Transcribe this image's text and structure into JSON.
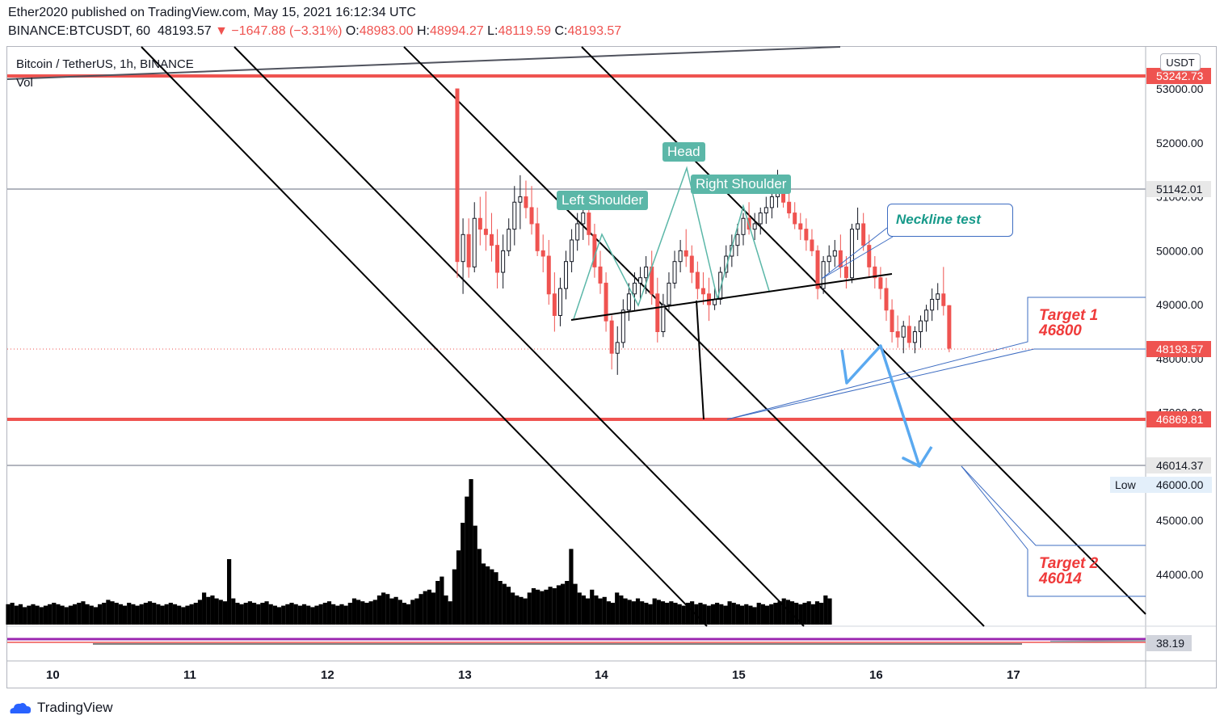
{
  "header": {
    "published": "Ether2020 published on TradingView.com, May 15, 2021 16:12:34 UTC",
    "symbol": "BINANCE:BTCUSDT, 60",
    "last": "48193.57",
    "change": "▼ −1647.88 (−3.31%)",
    "o_label": "O:",
    "o": "48983.00",
    "h_label": "H:",
    "h": "48994.27",
    "l_label": "L:",
    "l": "48119.59",
    "c_label": "C:",
    "c": "48193.57"
  },
  "legend": {
    "title": "Bitcoin / TetherUS, 1h, BINANCE",
    "vol": "Vol",
    "currency": "USDT"
  },
  "annotations": {
    "head": "Head",
    "left_shoulder": "Left Shoulder",
    "right_shoulder": "Right Shoulder",
    "neckline_test": "Neckline test",
    "target1_title": "Target 1",
    "target1_value": "46800",
    "target2_title": "Target 2",
    "target2_value": "46014"
  },
  "price_tags": {
    "level1": "53242.73",
    "level2": "51142.01",
    "last": "48193.57",
    "level3": "46869.81",
    "level4": "46014.37",
    "low_label": "Low",
    "low_value": "46000.00",
    "indicator": "38.19"
  },
  "footer": {
    "brand": "TradingView"
  },
  "colors": {
    "up": "#ffffff",
    "down": "#ef5350",
    "teal": "#5bb7a8",
    "red_line": "#ef5350",
    "blue_arrow": "#5aa9f0",
    "vol": "#000000"
  },
  "chart_data": {
    "type": "candlestick",
    "y_axis_ticks": [
      53000,
      52000,
      51000,
      50000,
      49000,
      48000,
      47000,
      45000,
      44000
    ],
    "x_axis_ticks": [
      "10",
      "11",
      "12",
      "13",
      "14",
      "15",
      "16",
      "17"
    ],
    "horizontal_levels": [
      53242.73,
      51142.01,
      46869.81,
      46014.37
    ],
    "last_price": 48193.57,
    "low": 46000.0,
    "candles_note_times": "hourly, May 13 00:00 to May 15 16:00",
    "ohlc": [
      [
        53000,
        53000,
        49500,
        49800
      ],
      [
        49800,
        50600,
        49200,
        50300
      ],
      [
        50300,
        50600,
        49500,
        49700
      ],
      [
        49700,
        50900,
        49600,
        50600
      ],
      [
        50600,
        51000,
        50100,
        50400
      ],
      [
        50400,
        51100,
        50000,
        50300
      ],
      [
        50300,
        50700,
        49800,
        50100
      ],
      [
        50100,
        50400,
        49300,
        49600
      ],
      [
        49600,
        50300,
        49300,
        50000
      ],
      [
        50000,
        50600,
        49900,
        50400
      ],
      [
        50400,
        51200,
        50100,
        50900
      ],
      [
        50900,
        51400,
        50400,
        51000
      ],
      [
        51000,
        51300,
        50600,
        50800
      ],
      [
        50800,
        51200,
        50300,
        50500
      ],
      [
        50500,
        50800,
        49900,
        50000
      ],
      [
        50000,
        50300,
        49600,
        49900
      ],
      [
        49900,
        50200,
        49000,
        49200
      ],
      [
        49200,
        49600,
        48500,
        48800
      ],
      [
        48800,
        49500,
        48600,
        49300
      ],
      [
        49300,
        50000,
        49100,
        49800
      ],
      [
        49800,
        50400,
        49600,
        50200
      ],
      [
        50200,
        50700,
        50000,
        50500
      ],
      [
        50500,
        50900,
        50200,
        50700
      ],
      [
        50700,
        50900,
        50100,
        50300
      ],
      [
        50300,
        50500,
        49500,
        49700
      ],
      [
        49700,
        50000,
        49200,
        49400
      ],
      [
        49400,
        49600,
        48500,
        48700
      ],
      [
        48700,
        48800,
        47800,
        48100
      ],
      [
        48100,
        48600,
        47700,
        48300
      ],
      [
        48300,
        49100,
        48200,
        48900
      ],
      [
        48900,
        49400,
        48700,
        49200
      ],
      [
        49200,
        49600,
        48900,
        49400
      ],
      [
        49400,
        49700,
        49100,
        49500
      ],
      [
        49500,
        49900,
        49200,
        49700
      ],
      [
        49700,
        50000,
        49000,
        49200
      ],
      [
        49200,
        49500,
        48300,
        48500
      ],
      [
        48500,
        49200,
        48400,
        49000
      ],
      [
        49000,
        49600,
        48900,
        49400
      ],
      [
        49400,
        50000,
        49300,
        49800
      ],
      [
        49800,
        50200,
        49600,
        50000
      ],
      [
        50000,
        50400,
        49700,
        49900
      ],
      [
        49900,
        50100,
        49400,
        49600
      ],
      [
        49600,
        49800,
        49100,
        49300
      ],
      [
        49300,
        49600,
        49000,
        49200
      ],
      [
        49200,
        49500,
        48700,
        49000
      ],
      [
        49000,
        49300,
        48900,
        49100
      ],
      [
        49100,
        49700,
        49000,
        49600
      ],
      [
        49600,
        50100,
        49500,
        49900
      ],
      [
        49900,
        50300,
        49700,
        50100
      ],
      [
        50100,
        50500,
        49900,
        50300
      ],
      [
        50300,
        50700,
        50100,
        50600
      ],
      [
        50600,
        50900,
        50300,
        50400
      ],
      [
        50400,
        50700,
        50200,
        50500
      ],
      [
        50500,
        50800,
        50300,
        50700
      ],
      [
        50700,
        51000,
        50500,
        50800
      ],
      [
        50800,
        51100,
        50600,
        51000
      ],
      [
        51000,
        51500,
        50800,
        51200
      ],
      [
        51200,
        51300,
        50800,
        50900
      ],
      [
        50900,
        51100,
        50600,
        50700
      ],
      [
        50700,
        50900,
        50400,
        50500
      ],
      [
        50500,
        50700,
        50200,
        50400
      ],
      [
        50400,
        50600,
        50000,
        50200
      ],
      [
        50200,
        50400,
        49900,
        50000
      ],
      [
        50000,
        50100,
        49100,
        49300
      ],
      [
        49300,
        49900,
        49200,
        49800
      ],
      [
        49800,
        50100,
        49600,
        49900
      ],
      [
        49900,
        50200,
        49700,
        50000
      ],
      [
        50000,
        50300,
        49500,
        49700
      ],
      [
        49700,
        49900,
        49300,
        49500
      ],
      [
        49500,
        50500,
        49400,
        50400
      ],
      [
        50400,
        50800,
        50200,
        50500
      ],
      [
        50500,
        50700,
        50000,
        50100
      ],
      [
        50100,
        50300,
        49500,
        49700
      ],
      [
        49700,
        49900,
        49300,
        49500
      ],
      [
        49500,
        49700,
        49100,
        49300
      ],
      [
        49300,
        49500,
        48700,
        48900
      ],
      [
        48900,
        49100,
        48300,
        48500
      ],
      [
        48500,
        48800,
        48200,
        48400
      ],
      [
        48400,
        48700,
        48100,
        48600
      ],
      [
        48600,
        48800,
        48200,
        48300
      ],
      [
        48300,
        48600,
        48100,
        48500
      ],
      [
        48500,
        48800,
        48200,
        48700
      ],
      [
        48700,
        49000,
        48500,
        48900
      ],
      [
        48900,
        49300,
        48700,
        49100
      ],
      [
        49100,
        49400,
        48900,
        49200
      ],
      [
        49200,
        49700,
        48800,
        48983
      ],
      [
        48983,
        48994.27,
        48119.59,
        48193.57
      ]
    ],
    "volume_relative": [
      100,
      68,
      52,
      42,
      40,
      38,
      36,
      30,
      28,
      26,
      22,
      20,
      19,
      18,
      22,
      25,
      24,
      23,
      24,
      26,
      25,
      27,
      28,
      30,
      52,
      28,
      22,
      20,
      18,
      24,
      20,
      18,
      19,
      16,
      15,
      22,
      20,
      18,
      17,
      16,
      18,
      16,
      15,
      14,
      18,
      17,
      16,
      15,
      16,
      15,
      14,
      13,
      15,
      16,
      14,
      15,
      14,
      13,
      14,
      15,
      14,
      13,
      16,
      15,
      14,
      13,
      14,
      13,
      12,
      15,
      14,
      13,
      14,
      15,
      16,
      18,
      17,
      16,
      15,
      14,
      15,
      16,
      14,
      16,
      15,
      20,
      18
    ]
  }
}
